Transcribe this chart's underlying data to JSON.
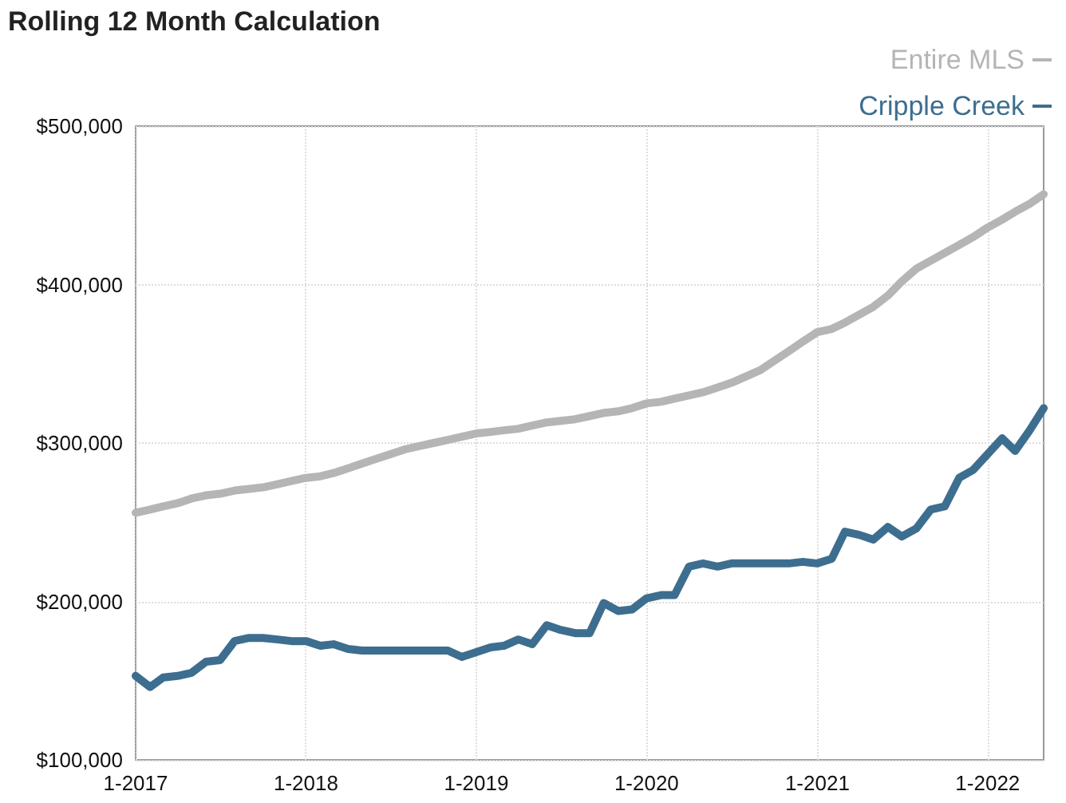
{
  "chart_data": {
    "type": "line",
    "title": "Rolling 12 Month Calculation",
    "x": [
      "2017-01",
      "2017-02",
      "2017-03",
      "2017-04",
      "2017-05",
      "2017-06",
      "2017-07",
      "2017-08",
      "2017-09",
      "2017-10",
      "2017-11",
      "2017-12",
      "2018-01",
      "2018-02",
      "2018-03",
      "2018-04",
      "2018-05",
      "2018-06",
      "2018-07",
      "2018-08",
      "2018-09",
      "2018-10",
      "2018-11",
      "2018-12",
      "2019-01",
      "2019-02",
      "2019-03",
      "2019-04",
      "2019-05",
      "2019-06",
      "2019-07",
      "2019-08",
      "2019-09",
      "2019-10",
      "2019-11",
      "2019-12",
      "2020-01",
      "2020-02",
      "2020-03",
      "2020-04",
      "2020-05",
      "2020-06",
      "2020-07",
      "2020-08",
      "2020-09",
      "2020-10",
      "2020-11",
      "2020-12",
      "2021-01",
      "2021-02",
      "2021-03",
      "2021-04",
      "2021-05",
      "2021-06",
      "2021-07",
      "2021-08",
      "2021-09",
      "2021-10",
      "2021-11",
      "2021-12",
      "2022-01",
      "2022-02",
      "2022-03",
      "2022-04",
      "2022-05"
    ],
    "series": [
      {
        "name": "Entire MLS",
        "color": "#b5b5b5",
        "values": [
          256000,
          258000,
          260000,
          262000,
          265000,
          267000,
          268000,
          270000,
          271000,
          272000,
          274000,
          276000,
          278000,
          279000,
          281000,
          284000,
          287000,
          290000,
          293000,
          296000,
          298000,
          300000,
          302000,
          304000,
          306000,
          307000,
          308000,
          309000,
          311000,
          313000,
          314000,
          315000,
          317000,
          319000,
          320000,
          322000,
          325000,
          326000,
          328000,
          330000,
          332000,
          335000,
          338000,
          342000,
          346000,
          352000,
          358000,
          364000,
          370000,
          372000,
          376000,
          381000,
          386000,
          393000,
          402000,
          410000,
          415000,
          420000,
          425000,
          430000,
          436000,
          441000,
          446000,
          451000,
          457000
        ]
      },
      {
        "name": "Cripple Creek",
        "color": "#3d6e8f",
        "values": [
          153000,
          146000,
          152000,
          153000,
          155000,
          162000,
          163000,
          175000,
          177000,
          177000,
          176000,
          175000,
          175000,
          172000,
          173000,
          170000,
          169000,
          169000,
          169000,
          169000,
          169000,
          169000,
          169000,
          165000,
          168000,
          171000,
          172000,
          176000,
          173000,
          185000,
          182000,
          180000,
          180000,
          199000,
          194000,
          195000,
          202000,
          204000,
          204000,
          222000,
          224000,
          222000,
          224000,
          224000,
          224000,
          224000,
          224000,
          225000,
          224000,
          227000,
          244000,
          242000,
          239000,
          247000,
          241000,
          246000,
          258000,
          260000,
          278000,
          283000,
          293000,
          303000,
          295000,
          308000,
          322000
        ]
      }
    ],
    "xlim": [
      "2017-01",
      "2022-05"
    ],
    "xticks": [
      {
        "value": "2017-01",
        "label": "1-2017"
      },
      {
        "value": "2018-01",
        "label": "1-2018"
      },
      {
        "value": "2019-01",
        "label": "1-2019"
      },
      {
        "value": "2020-01",
        "label": "1-2020"
      },
      {
        "value": "2021-01",
        "label": "1-2021"
      },
      {
        "value": "2022-01",
        "label": "1-2022"
      }
    ],
    "ylim": [
      100000,
      500000
    ],
    "yticks": [
      {
        "value": 100000,
        "label": "$100,000"
      },
      {
        "value": 200000,
        "label": "$200,000"
      },
      {
        "value": 300000,
        "label": "$300,000"
      },
      {
        "value": 400000,
        "label": "$400,000"
      },
      {
        "value": 500000,
        "label": "$500,000"
      }
    ],
    "grid": true,
    "legend": "top right",
    "marker": "none",
    "line_style": "solid"
  }
}
